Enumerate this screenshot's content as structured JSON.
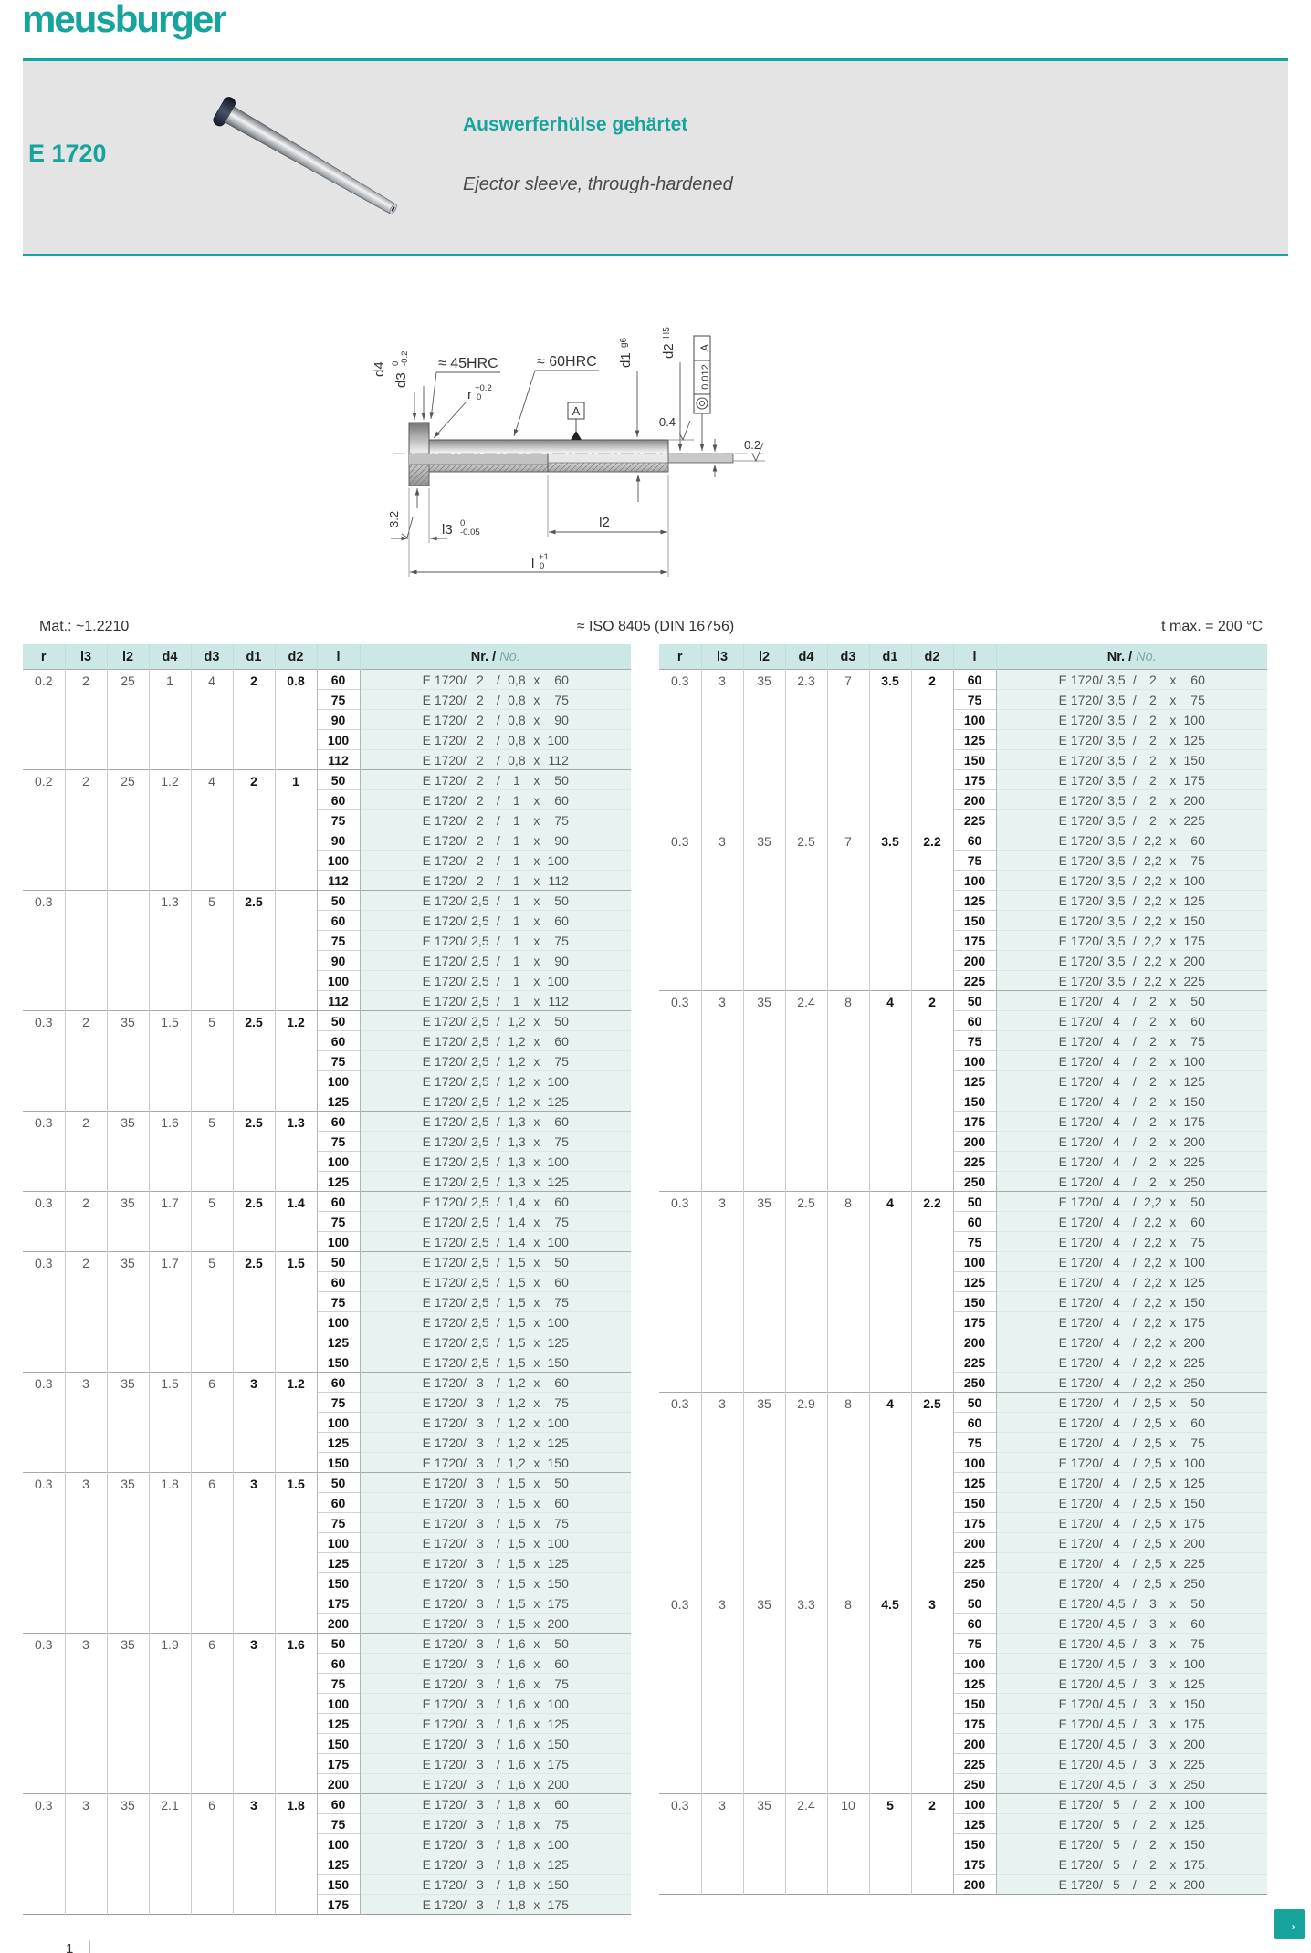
{
  "colors": {
    "teal": "#17a49d",
    "banner_bg": "#e4e4e4",
    "table_header_bg": "#cbe8e5",
    "nr_cell_bg": "#e8f3f1"
  },
  "header": {
    "logo_text": "meusburger"
  },
  "banner": {
    "code": "E 1720",
    "title_de": "Auswerferhülse gehärtet",
    "title_en": "Ejector sleeve, through-hardened"
  },
  "drawing": {
    "d4": "d4",
    "d3": "d3",
    "d3_tol_hi": "0",
    "d3_tol_lo": "-0.2",
    "hrc45": "≈ 45HRC",
    "hrc60": "≈ 60HRC",
    "r": "r",
    "r_tol_hi": "+0.2",
    "r_tol_lo": "0",
    "datum": "A",
    "d1": "d1",
    "d1_fit": "g6",
    "d2": "d2",
    "d2_fit": "H5",
    "fcf_datum": "A",
    "fcf_value": "0.012",
    "ra_head": "3.2",
    "ra_d1": "0.4",
    "ra_d2": "0.2",
    "l3": "l3",
    "l3_tol_hi": "0",
    "l3_tol_lo": "-0.05",
    "l2": "l2",
    "l": "l",
    "l_tol_hi": "+1",
    "l_tol_lo": "0"
  },
  "meta": {
    "material": "Mat.: ~1.2210",
    "standard": "≈ ISO 8405 (DIN 16756)",
    "t_max": "t max. = 200 °C"
  },
  "table": {
    "columns": [
      "r",
      "l3",
      "l2",
      "d4",
      "d3",
      "d1",
      "d2",
      "l"
    ],
    "nr_header_bold": "Nr.",
    "nr_header_sep": " / ",
    "nr_header_italic": "No.",
    "nr_prefix": "E 1720/",
    "slash_sep": "/",
    "x_sep": "x"
  },
  "left_groups": [
    {
      "r": "0.2",
      "l3": "2",
      "l2": "25",
      "d4": "1",
      "d3": "4",
      "d1": "2",
      "d2": "0.8",
      "nr_d1": "2",
      "nr_d2": "0,8",
      "lengths": [
        "60",
        "75",
        "90",
        "100",
        "112"
      ]
    },
    {
      "r": "0.2",
      "l3": "2",
      "l2": "25",
      "d4": "1.2",
      "d3": "4",
      "d1": "2",
      "d2": "1",
      "nr_d1": "2",
      "nr_d2": "1",
      "lengths": [
        "50",
        "60",
        "75",
        "90",
        "100",
        "112"
      ]
    },
    {
      "r": "0.3",
      "l3": "",
      "l2": "",
      "d4": "1.3",
      "d3": "5",
      "d1": "2.5",
      "d2": "",
      "nr_d1": "2,5",
      "nr_d2": "1",
      "lengths": [
        "50",
        "60",
        "75",
        "90",
        "100",
        "112"
      ]
    },
    {
      "r": "0.3",
      "l3": "2",
      "l2": "35",
      "d4": "1.5",
      "d3": "5",
      "d1": "2.5",
      "d2": "1.2",
      "nr_d1": "2,5",
      "nr_d2": "1,2",
      "lengths": [
        "50",
        "60",
        "75",
        "100",
        "125"
      ]
    },
    {
      "r": "0.3",
      "l3": "2",
      "l2": "35",
      "d4": "1.6",
      "d3": "5",
      "d1": "2.5",
      "d2": "1.3",
      "nr_d1": "2,5",
      "nr_d2": "1,3",
      "lengths": [
        "60",
        "75",
        "100",
        "125"
      ]
    },
    {
      "r": "0.3",
      "l3": "2",
      "l2": "35",
      "d4": "1.7",
      "d3": "5",
      "d1": "2.5",
      "d2": "1.4",
      "nr_d1": "2,5",
      "nr_d2": "1,4",
      "lengths": [
        "60",
        "75",
        "100"
      ]
    },
    {
      "r": "0.3",
      "l3": "2",
      "l2": "35",
      "d4": "1.7",
      "d3": "5",
      "d1": "2.5",
      "d2": "1.5",
      "nr_d1": "2,5",
      "nr_d2": "1,5",
      "lengths": [
        "50",
        "60",
        "75",
        "100",
        "125",
        "150"
      ]
    },
    {
      "r": "0.3",
      "l3": "3",
      "l2": "35",
      "d4": "1.5",
      "d3": "6",
      "d1": "3",
      "d2": "1.2",
      "nr_d1": "3",
      "nr_d2": "1,2",
      "lengths": [
        "60",
        "75",
        "100",
        "125",
        "150"
      ]
    },
    {
      "r": "0.3",
      "l3": "3",
      "l2": "35",
      "d4": "1.8",
      "d3": "6",
      "d1": "3",
      "d2": "1.5",
      "nr_d1": "3",
      "nr_d2": "1,5",
      "lengths": [
        "50",
        "60",
        "75",
        "100",
        "125",
        "150",
        "175",
        "200"
      ]
    },
    {
      "r": "0.3",
      "l3": "3",
      "l2": "35",
      "d4": "1.9",
      "d3": "6",
      "d1": "3",
      "d2": "1.6",
      "nr_d1": "3",
      "nr_d2": "1,6",
      "lengths": [
        "50",
        "60",
        "75",
        "100",
        "125",
        "150",
        "175",
        "200"
      ]
    },
    {
      "r": "0.3",
      "l3": "3",
      "l2": "35",
      "d4": "2.1",
      "d3": "6",
      "d1": "3",
      "d2": "1.8",
      "nr_d1": "3",
      "nr_d2": "1,8",
      "lengths": [
        "60",
        "75",
        "100",
        "125",
        "150",
        "175"
      ]
    }
  ],
  "right_groups": [
    {
      "r": "0.3",
      "l3": "3",
      "l2": "35",
      "d4": "2.3",
      "d3": "7",
      "d1": "3.5",
      "d2": "2",
      "nr_d1": "3,5",
      "nr_d2": "2",
      "lengths": [
        "60",
        "75",
        "100",
        "125",
        "150",
        "175",
        "200",
        "225"
      ]
    },
    {
      "r": "0.3",
      "l3": "3",
      "l2": "35",
      "d4": "2.5",
      "d3": "7",
      "d1": "3.5",
      "d2": "2.2",
      "nr_d1": "3,5",
      "nr_d2": "2,2",
      "lengths": [
        "60",
        "75",
        "100",
        "125",
        "150",
        "175",
        "200",
        "225"
      ]
    },
    {
      "r": "0.3",
      "l3": "3",
      "l2": "35",
      "d4": "2.4",
      "d3": "8",
      "d1": "4",
      "d2": "2",
      "nr_d1": "4",
      "nr_d2": "2",
      "lengths": [
        "50",
        "60",
        "75",
        "100",
        "125",
        "150",
        "175",
        "200",
        "225",
        "250"
      ]
    },
    {
      "r": "0.3",
      "l3": "3",
      "l2": "35",
      "d4": "2.5",
      "d3": "8",
      "d1": "4",
      "d2": "2.2",
      "nr_d1": "4",
      "nr_d2": "2,2",
      "lengths": [
        "50",
        "60",
        "75",
        "100",
        "125",
        "150",
        "175",
        "200",
        "225",
        "250"
      ]
    },
    {
      "r": "0.3",
      "l3": "3",
      "l2": "35",
      "d4": "2.9",
      "d3": "8",
      "d1": "4",
      "d2": "2.5",
      "nr_d1": "4",
      "nr_d2": "2,5",
      "lengths": [
        "50",
        "60",
        "75",
        "100",
        "125",
        "150",
        "175",
        "200",
        "225",
        "250"
      ]
    },
    {
      "r": "0.3",
      "l3": "3",
      "l2": "35",
      "d4": "3.3",
      "d3": "8",
      "d1": "4.5",
      "d2": "3",
      "nr_d1": "4,5",
      "nr_d2": "3",
      "lengths": [
        "50",
        "60",
        "75",
        "100",
        "125",
        "150",
        "175",
        "200",
        "225",
        "250"
      ]
    },
    {
      "r": "0.3",
      "l3": "3",
      "l2": "35",
      "d4": "2.4",
      "d3": "10",
      "d1": "5",
      "d2": "2",
      "nr_d1": "5",
      "nr_d2": "2",
      "lengths": [
        "100",
        "125",
        "150",
        "175",
        "200"
      ]
    }
  ],
  "footer": {
    "page_number": "1",
    "next_arrow": "→"
  }
}
